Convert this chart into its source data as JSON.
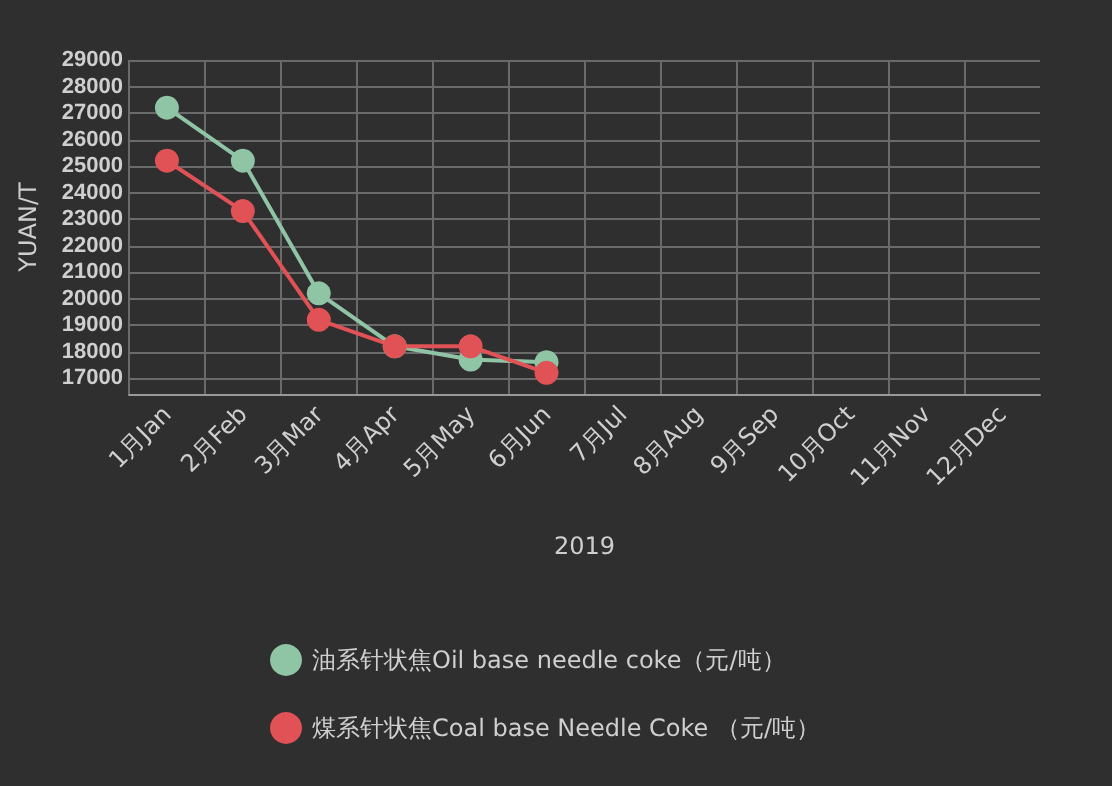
{
  "chart_data": {
    "type": "line",
    "xlabel": "2019",
    "ylabel": "YUAN/T",
    "categories": [
      "1月Jan",
      "2月Feb",
      "3月Mar",
      "4月Apr",
      "5月May",
      "6月Jun",
      "7月Jul",
      "8月Aug",
      "9月Sep",
      "10月Oct",
      "11月Nov",
      "12月Dec"
    ],
    "series": [
      {
        "name": "油系针状焦Oil base needle coke（元/吨）",
        "color": "#8fc4a4",
        "values": [
          27200,
          25200,
          20200,
          18200,
          17700,
          17600,
          null,
          null,
          null,
          null,
          null,
          null
        ]
      },
      {
        "name": "煤系针状焦Coal base Needle Coke （元/吨）",
        "color": "#e05256",
        "values": [
          25200,
          23300,
          19200,
          18200,
          18200,
          17200,
          null,
          null,
          null,
          null,
          null,
          null
        ]
      }
    ],
    "ylim": [
      16400,
      29000
    ],
    "yticks": [
      17000,
      18000,
      19000,
      20000,
      21000,
      22000,
      23000,
      24000,
      25000,
      26000,
      27000,
      28000,
      29000
    ],
    "grid": true,
    "legend": "bottom",
    "marker": "circle",
    "line_style": "solid"
  }
}
